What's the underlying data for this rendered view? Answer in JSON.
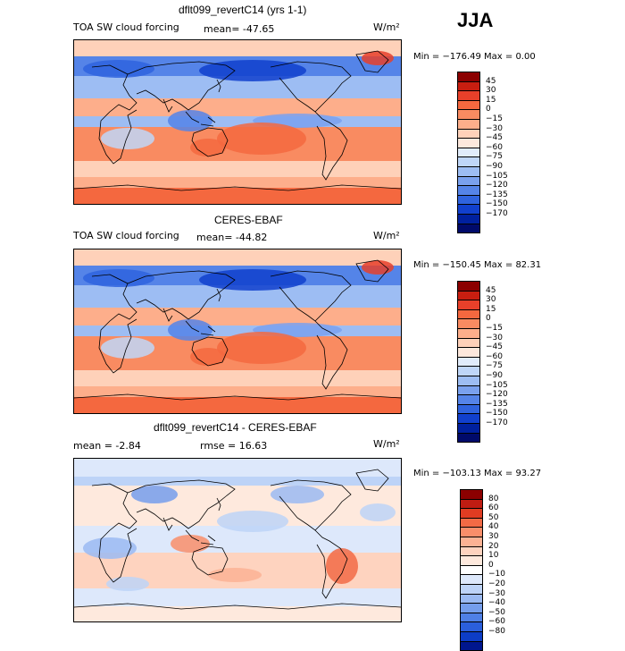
{
  "season": "JJA",
  "colors": {
    "forcing_scale": [
      "#8b0000",
      "#c81e10",
      "#e8402a",
      "#f4683f",
      "#f98b61",
      "#fdae8b",
      "#fed1b9",
      "#fde8dc",
      "#e1ecfb",
      "#bfd6f8",
      "#9dbdf3",
      "#7aa1ee",
      "#5584e8",
      "#2f63de",
      "#1140cd",
      "#00209e",
      "#000a6a"
    ],
    "diff_scale": [
      "#8b0000",
      "#c01c12",
      "#e03c22",
      "#f26a45",
      "#f98e6a",
      "#fcb294",
      "#fed3bf",
      "#fee9dd",
      "#ffffff",
      "#dde8fb",
      "#bdd3f7",
      "#9bbaf2",
      "#759eec",
      "#4f80e6",
      "#2b5fdc",
      "#0d3dc6",
      "#00168e"
    ]
  },
  "chart_data": [
    {
      "type": "heatmap",
      "title": "dflt099_revertC14 (yrs 1-1)",
      "subtitle_left": "TOA SW cloud forcing",
      "mean_text": "mean= -47.65",
      "units": "W/m²",
      "min_max": "Min = −176.49  Max =    0.00",
      "colorbar_labels": [
        "45",
        "30",
        "15",
        "0",
        "−15",
        "−30",
        "−45",
        "−60",
        "−75",
        "−90",
        "−105",
        "−120",
        "−135",
        "−150",
        "−170"
      ],
      "min": -176.49,
      "max": 0.0,
      "mean": -47.65
    },
    {
      "type": "heatmap",
      "title": "CERES-EBAF",
      "subtitle_left": "TOA SW cloud forcing",
      "mean_text": "mean= -44.82",
      "units": "W/m²",
      "min_max": "Min = −150.45  Max =  82.31",
      "colorbar_labels": [
        "45",
        "30",
        "15",
        "0",
        "−15",
        "−30",
        "−45",
        "−60",
        "−75",
        "−90",
        "−105",
        "−120",
        "−135",
        "−150",
        "−170"
      ],
      "min": -150.45,
      "max": 82.31,
      "mean": -44.82
    },
    {
      "type": "heatmap",
      "title": "dflt099_revertC14 - CERES-EBAF",
      "mean_text": "mean =   -2.84",
      "rmse_text": "rmse =  16.63",
      "units": "W/m²",
      "min_max": "Min = −103.13  Max =  93.27",
      "colorbar_labels": [
        "80",
        "60",
        "50",
        "40",
        "30",
        "20",
        "10",
        "0",
        "−10",
        "−20",
        "−30",
        "−40",
        "−50",
        "−60",
        "−80"
      ],
      "min": -103.13,
      "max": 93.27,
      "mean": -2.84,
      "rmse": 16.63
    }
  ]
}
